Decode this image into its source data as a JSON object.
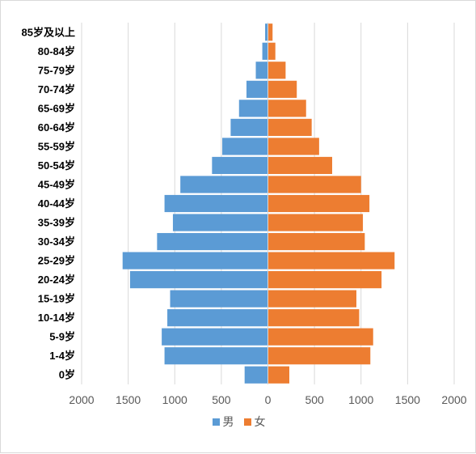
{
  "chart_data": {
    "type": "bar",
    "orientation": "horizontal",
    "variant": "population-pyramid",
    "categories": [
      "85岁及以上",
      "80-84岁",
      "75-79岁",
      "70-74岁",
      "65-69岁",
      "60-64岁",
      "55-59岁",
      "50-54岁",
      "45-49岁",
      "40-44岁",
      "35-39岁",
      "30-34岁",
      "25-29岁",
      "20-24岁",
      "15-19岁",
      "10-14岁",
      "5-9岁",
      "1-4岁",
      "0岁"
    ],
    "series": [
      {
        "name": "男",
        "color": "#5b9bd5",
        "side": "left",
        "values": [
          30,
          60,
          130,
          230,
          310,
          400,
          490,
          600,
          940,
          1110,
          1020,
          1190,
          1560,
          1480,
          1050,
          1080,
          1140,
          1110,
          250
        ]
      },
      {
        "name": "女",
        "color": "#ed7d31",
        "side": "right",
        "values": [
          50,
          80,
          190,
          310,
          410,
          470,
          550,
          690,
          1000,
          1090,
          1020,
          1040,
          1360,
          1220,
          950,
          980,
          1130,
          1100,
          230
        ]
      }
    ],
    "xlim": [
      -2000,
      2000
    ],
    "x_ticks": [
      2000,
      1500,
      1000,
      500,
      0,
      500,
      1000,
      1500,
      2000
    ],
    "grid": "vertical",
    "legend_position": "bottom"
  },
  "legend": {
    "male_label": "男",
    "female_label": "女",
    "male_color": "#5b9bd5",
    "female_color": "#ed7d31"
  }
}
